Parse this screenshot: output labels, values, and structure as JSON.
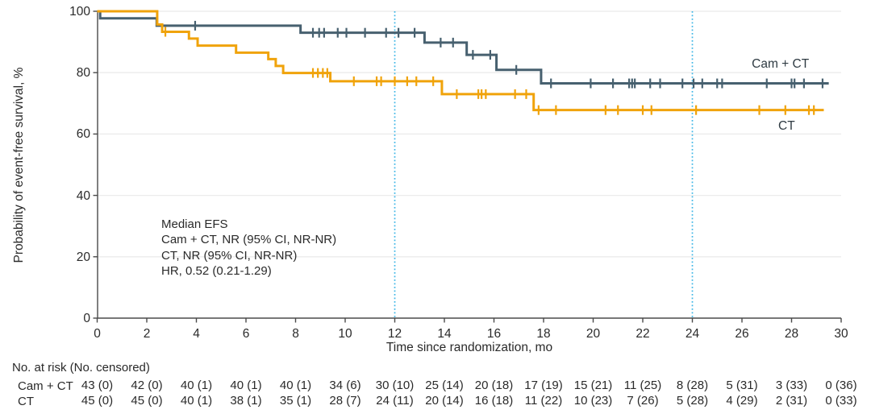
{
  "colors": {
    "cam_ct": "#47606f",
    "ct": "#f0a30b",
    "reference_line": "#3db6e6",
    "grid": "#ebebeb",
    "axis": "#4a4a4a",
    "text": "#2a2a2a"
  },
  "annotation": {
    "lines": [
      "Median EFS",
      "Cam + CT, NR (95% CI, NR-NR)",
      "CT, NR (95% CI, NR-NR)",
      "HR, 0.52 (0.21-1.29)"
    ]
  },
  "chart_data": {
    "type": "line",
    "subtype": "kaplan-meier-step",
    "title": "",
    "xlabel": "Time since randomization, mo",
    "ylabel": "Probability of event-free survival, %",
    "xlim": [
      0,
      30
    ],
    "ylim": [
      0,
      100
    ],
    "xticks": [
      0,
      2,
      4,
      6,
      8,
      10,
      12,
      14,
      16,
      18,
      20,
      22,
      24,
      26,
      28,
      30
    ],
    "yticks": [
      0,
      20,
      40,
      60,
      80,
      100
    ],
    "grid": "horizontal",
    "reference_lines_x": [
      12,
      24
    ],
    "series": [
      {
        "name": "Cam + CT",
        "color": "#47606f",
        "label_anchor": {
          "t": 27.55,
          "pct": 82.7
        },
        "steps": [
          [
            0,
            100
          ],
          [
            0.12,
            97.7
          ],
          [
            2.4,
            95.3
          ],
          [
            8.2,
            93.0
          ],
          [
            13.2,
            89.8
          ],
          [
            14.9,
            85.8
          ],
          [
            16.1,
            80.9
          ],
          [
            17.9,
            76.5
          ]
        ],
        "end_t": 29.5,
        "censors": [
          [
            3.95,
            95.3
          ],
          [
            8.7,
            93.0
          ],
          [
            8.95,
            93.0
          ],
          [
            9.15,
            93.0
          ],
          [
            9.7,
            93.0
          ],
          [
            10.05,
            93.0
          ],
          [
            10.8,
            93.0
          ],
          [
            11.65,
            93.0
          ],
          [
            12.15,
            93.0
          ],
          [
            12.8,
            93.0
          ],
          [
            13.85,
            89.8
          ],
          [
            14.35,
            89.8
          ],
          [
            15.15,
            85.8
          ],
          [
            15.85,
            85.8
          ],
          [
            16.9,
            80.9
          ],
          [
            18.3,
            76.5
          ],
          [
            19.9,
            76.5
          ],
          [
            20.8,
            76.5
          ],
          [
            21.45,
            76.5
          ],
          [
            21.57,
            76.5
          ],
          [
            21.68,
            76.5
          ],
          [
            22.3,
            76.5
          ],
          [
            22.7,
            76.5
          ],
          [
            23.6,
            76.5
          ],
          [
            24.05,
            76.5
          ],
          [
            24.4,
            76.5
          ],
          [
            25.0,
            76.5
          ],
          [
            25.2,
            76.5
          ],
          [
            27.0,
            76.5
          ],
          [
            28.0,
            76.5
          ],
          [
            28.12,
            76.5
          ],
          [
            28.5,
            76.5
          ],
          [
            29.25,
            76.5
          ]
        ]
      },
      {
        "name": "CT",
        "color": "#f0a30b",
        "label_anchor": {
          "t": 27.8,
          "pct": 62.5
        },
        "steps": [
          [
            0,
            100
          ],
          [
            2.42,
            95.7
          ],
          [
            2.62,
            93.3
          ],
          [
            3.7,
            91.1
          ],
          [
            4.05,
            88.8
          ],
          [
            5.6,
            86.5
          ],
          [
            6.9,
            84.4
          ],
          [
            7.2,
            82.2
          ],
          [
            7.5,
            79.9
          ],
          [
            9.4,
            77.2
          ],
          [
            13.9,
            73.0
          ],
          [
            17.6,
            67.8
          ]
        ],
        "end_t": 29.3,
        "censors": [
          [
            2.75,
            93.3
          ],
          [
            8.7,
            79.9
          ],
          [
            8.9,
            79.9
          ],
          [
            9.1,
            79.9
          ],
          [
            9.28,
            79.9
          ],
          [
            10.35,
            77.2
          ],
          [
            11.27,
            77.2
          ],
          [
            11.45,
            77.2
          ],
          [
            12.0,
            77.2
          ],
          [
            12.5,
            77.2
          ],
          [
            12.87,
            77.2
          ],
          [
            13.55,
            77.2
          ],
          [
            14.5,
            73.0
          ],
          [
            15.37,
            73.0
          ],
          [
            15.5,
            73.0
          ],
          [
            15.67,
            73.0
          ],
          [
            16.85,
            73.0
          ],
          [
            17.3,
            73.0
          ],
          [
            17.8,
            67.8
          ],
          [
            18.5,
            67.8
          ],
          [
            20.5,
            67.8
          ],
          [
            21.0,
            67.8
          ],
          [
            22.0,
            67.8
          ],
          [
            22.35,
            67.8
          ],
          [
            24.15,
            67.8
          ],
          [
            26.7,
            67.8
          ],
          [
            27.75,
            67.8
          ],
          [
            28.7,
            67.8
          ],
          [
            28.9,
            67.8
          ]
        ]
      }
    ]
  },
  "risk_table": {
    "header": "No. at risk (No. censored)",
    "times": [
      0,
      2,
      4,
      6,
      8,
      10,
      12,
      14,
      16,
      18,
      20,
      22,
      24,
      26,
      28,
      30
    ],
    "rows": [
      {
        "label": "Cam + CT",
        "values": [
          "43 (0)",
          "42 (0)",
          "40 (1)",
          "40 (1)",
          "40 (1)",
          "34 (6)",
          "30 (10)",
          "25 (14)",
          "20 (18)",
          "17 (19)",
          "15 (21)",
          "11 (25)",
          "8 (28)",
          "5 (31)",
          "3 (33)",
          "0 (36)"
        ]
      },
      {
        "label": "CT",
        "values": [
          "45 (0)",
          "45 (0)",
          "40 (1)",
          "38 (1)",
          "35 (1)",
          "28 (7)",
          "24 (11)",
          "20 (14)",
          "16 (18)",
          "11 (22)",
          "10 (23)",
          "7 (26)",
          "5 (28)",
          "4 (29)",
          "2 (31)",
          "0 (33)"
        ]
      }
    ]
  }
}
